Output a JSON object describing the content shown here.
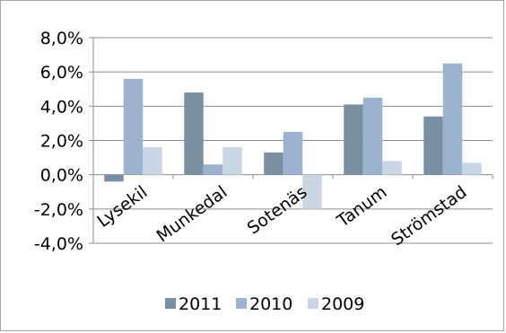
{
  "chart_data": {
    "type": "bar",
    "categories": [
      "Lysekil",
      "Munkedal",
      "Sotenäs",
      "Tanum",
      "Strömstad"
    ],
    "series": [
      {
        "name": "2011",
        "color": "#7b8fa3",
        "values": [
          -0.4,
          4.8,
          1.3,
          4.1,
          3.4
        ]
      },
      {
        "name": "2010",
        "color": "#9bb3cf",
        "values": [
          5.6,
          0.6,
          2.5,
          4.5,
          6.5
        ]
      },
      {
        "name": "2009",
        "color": "#c9d6e4",
        "values": [
          1.6,
          1.6,
          -2.0,
          0.8,
          0.7
        ]
      }
    ],
    "ylim": [
      -4.0,
      8.0
    ],
    "ytick_labels": [
      "8,0%",
      "6,0%",
      "4,0%",
      "2,0%",
      "0,0%",
      "-2,0%",
      "-4,0%"
    ],
    "grid": true,
    "legend_position": "bottom"
  }
}
